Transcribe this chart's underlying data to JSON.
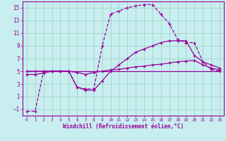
{
  "xlabel": "Windchill (Refroidissement éolien,°C)",
  "bg_color": "#c8eef0",
  "grid_color": "#a0d4c8",
  "line_color": "#990099",
  "xlim": [
    -0.5,
    23.5
  ],
  "ylim": [
    -2,
    16
  ],
  "xticks": [
    0,
    1,
    2,
    3,
    4,
    5,
    6,
    7,
    8,
    9,
    10,
    11,
    12,
    13,
    14,
    15,
    16,
    17,
    18,
    19,
    20,
    21,
    22,
    23
  ],
  "yticks": [
    -1,
    1,
    3,
    5,
    7,
    9,
    11,
    13,
    15
  ],
  "line1_x": [
    0,
    1,
    2,
    3,
    4,
    5,
    6,
    7,
    8,
    9,
    10,
    11,
    12,
    13,
    14,
    15,
    16,
    17,
    18,
    19,
    20,
    21,
    22,
    23
  ],
  "line1_y": [
    -1.3,
    -1.3,
    5,
    5,
    5,
    5,
    2.5,
    2.2,
    2.2,
    9,
    14,
    14.5,
    15,
    15.3,
    15.5,
    15.5,
    14,
    12.5,
    10,
    9.5,
    9.5,
    6.5,
    5.3,
    5
  ],
  "line2_x": [
    0,
    1,
    2,
    3,
    4,
    5,
    6,
    7,
    8,
    9,
    10,
    11,
    12,
    13,
    14,
    15,
    16,
    17,
    18,
    19,
    20,
    21,
    22,
    23
  ],
  "line2_y": [
    5,
    5,
    5,
    5,
    5,
    5,
    5,
    5,
    5,
    5,
    5,
    5,
    5,
    5,
    5,
    5,
    5,
    5,
    5,
    5,
    5,
    5,
    5,
    5
  ],
  "line3_x": [
    0,
    1,
    2,
    3,
    4,
    5,
    6,
    7,
    8,
    9,
    10,
    11,
    12,
    13,
    14,
    15,
    16,
    17,
    18,
    19,
    20,
    21,
    22,
    23
  ],
  "line3_y": [
    5,
    5,
    5,
    5,
    5,
    5,
    2.5,
    2,
    2,
    3.5,
    5,
    6,
    7,
    8,
    8.5,
    9,
    9.5,
    9.8,
    9.8,
    9.8,
    7.5,
    6.5,
    6,
    5.5
  ],
  "line4_x": [
    0,
    1,
    2,
    3,
    4,
    5,
    6,
    7,
    8,
    9,
    10,
    11,
    12,
    13,
    14,
    15,
    16,
    17,
    18,
    19,
    20,
    21,
    22,
    23
  ],
  "line4_y": [
    4.5,
    4.5,
    4.7,
    5,
    5,
    5,
    4.8,
    4.5,
    4.8,
    5,
    5.2,
    5.3,
    5.5,
    5.7,
    5.8,
    6,
    6.1,
    6.3,
    6.5,
    6.6,
    6.7,
    6,
    5.5,
    5.2
  ]
}
